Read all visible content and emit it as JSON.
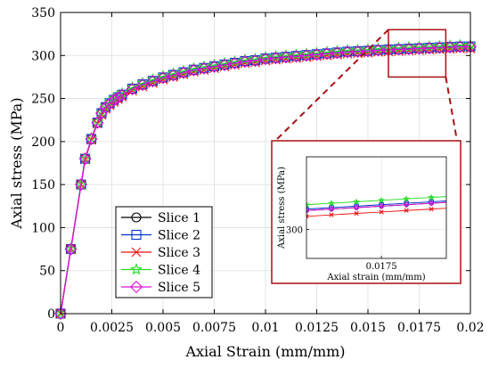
{
  "chart_data": {
    "type": "line",
    "title": "",
    "xlabel": "Axial Strain (mm/mm)",
    "ylabel": "Axial stress (MPa)",
    "xlim": [
      0,
      0.02
    ],
    "ylim": [
      0,
      350
    ],
    "grid": true,
    "legend_position": "bottom-left-center",
    "xticks": [
      0,
      0.0025,
      0.005,
      0.0075,
      0.01,
      0.0125,
      0.015,
      0.0175,
      0.02
    ],
    "xtick_labels": [
      "0",
      "0.0025",
      "0.005",
      "0.0075",
      "0.01",
      "0.0125",
      "0.015",
      "0.0175",
      "0.02"
    ],
    "yticks": [
      0,
      50,
      100,
      150,
      200,
      250,
      300,
      350
    ],
    "ytick_labels": [
      "0",
      "50",
      "100",
      "150",
      "200",
      "250",
      "300",
      "350"
    ],
    "series": [
      {
        "name": "Slice 1",
        "color": "#000000",
        "marker": "circle",
        "x": [
          0,
          0.0005,
          0.001,
          0.0012,
          0.0015,
          0.0018,
          0.002,
          0.0022,
          0.0024,
          0.0026,
          0.0028,
          0.003,
          0.0035,
          0.004,
          0.0045,
          0.005,
          0.0055,
          0.006,
          0.0065,
          0.007,
          0.0075,
          0.008,
          0.0085,
          0.009,
          0.0095,
          0.01,
          0.0105,
          0.011,
          0.0115,
          0.012,
          0.0125,
          0.013,
          0.0135,
          0.014,
          0.0145,
          0.015,
          0.0155,
          0.016,
          0.0165,
          0.017,
          0.0175,
          0.018,
          0.0185,
          0.019,
          0.0195,
          0.02
        ],
        "y": [
          0,
          75,
          150,
          180,
          203,
          222,
          233,
          240,
          244,
          248,
          251,
          254,
          261,
          266,
          270,
          274,
          277,
          280,
          283,
          285,
          287,
          289,
          291,
          293,
          294,
          296,
          297,
          298,
          299,
          300,
          301,
          302,
          303,
          304,
          304.5,
          305,
          306,
          306.5,
          307,
          307.5,
          308,
          308.5,
          309,
          309.5,
          310,
          310
        ]
      },
      {
        "name": "Slice 2",
        "color": "#0033cc",
        "marker": "square",
        "x": [
          0,
          0.0005,
          0.001,
          0.0012,
          0.0015,
          0.0018,
          0.002,
          0.0022,
          0.0024,
          0.0026,
          0.0028,
          0.003,
          0.0035,
          0.004,
          0.0045,
          0.005,
          0.0055,
          0.006,
          0.0065,
          0.007,
          0.0075,
          0.008,
          0.0085,
          0.009,
          0.0095,
          0.01,
          0.0105,
          0.011,
          0.0115,
          0.012,
          0.0125,
          0.013,
          0.0135,
          0.014,
          0.0145,
          0.015,
          0.0155,
          0.016,
          0.0165,
          0.017,
          0.0175,
          0.018,
          0.0185,
          0.019,
          0.0195,
          0.02
        ],
        "y": [
          0,
          75,
          150,
          180,
          203,
          222,
          233,
          240,
          244.5,
          248.5,
          251.5,
          254.5,
          261.5,
          266.5,
          270.5,
          274.5,
          277.5,
          280.5,
          283.5,
          285.5,
          287.5,
          289.5,
          291.5,
          293.5,
          294.5,
          296.5,
          297.5,
          298.5,
          299.5,
          300.5,
          301.5,
          302.5,
          303.5,
          304.5,
          305,
          305.5,
          306.5,
          307,
          307.5,
          308,
          308.5,
          309,
          309.5,
          310,
          310.5,
          310.5
        ]
      },
      {
        "name": "Slice 3",
        "color": "#ee1111",
        "marker": "x",
        "x": [
          0,
          0.0005,
          0.001,
          0.0012,
          0.0015,
          0.0018,
          0.002,
          0.0022,
          0.0024,
          0.0026,
          0.0028,
          0.003,
          0.0035,
          0.004,
          0.0045,
          0.005,
          0.0055,
          0.006,
          0.0065,
          0.007,
          0.0075,
          0.008,
          0.0085,
          0.009,
          0.0095,
          0.01,
          0.0105,
          0.011,
          0.0115,
          0.012,
          0.0125,
          0.013,
          0.0135,
          0.014,
          0.0145,
          0.015,
          0.0155,
          0.016,
          0.0165,
          0.017,
          0.0175,
          0.018,
          0.0185,
          0.019,
          0.0195,
          0.02
        ],
        "y": [
          0,
          75,
          150,
          179,
          202,
          221,
          231,
          238,
          242,
          246,
          249,
          252,
          259,
          264,
          268,
          272,
          275,
          278,
          281,
          283,
          285,
          287,
          289,
          291,
          292,
          294,
          295,
          296,
          297,
          298,
          299,
          300,
          301,
          302,
          302.5,
          303,
          304,
          304.5,
          305,
          305.5,
          306,
          306.5,
          307,
          307.5,
          308,
          308
        ]
      },
      {
        "name": "Slice 4",
        "color": "#22dd22",
        "marker": "star",
        "x": [
          0,
          0.0005,
          0.001,
          0.0012,
          0.0015,
          0.0018,
          0.002,
          0.0022,
          0.0024,
          0.0026,
          0.0028,
          0.003,
          0.0035,
          0.004,
          0.0045,
          0.005,
          0.0055,
          0.006,
          0.0065,
          0.007,
          0.0075,
          0.008,
          0.0085,
          0.009,
          0.0095,
          0.01,
          0.0105,
          0.011,
          0.0115,
          0.012,
          0.0125,
          0.013,
          0.0135,
          0.014,
          0.0145,
          0.015,
          0.0155,
          0.016,
          0.0165,
          0.017,
          0.0175,
          0.018,
          0.0185,
          0.019,
          0.0195,
          0.02
        ],
        "y": [
          0,
          75,
          150,
          180,
          204,
          223,
          234,
          241,
          246,
          250,
          253,
          256,
          263,
          268,
          272,
          276,
          279,
          282,
          285,
          287,
          289,
          291,
          293,
          295,
          296,
          298,
          299,
          300,
          301,
          302,
          303,
          304,
          305,
          306,
          306.5,
          307,
          308,
          308.5,
          309,
          309.5,
          310,
          310.5,
          311,
          311.5,
          312,
          312
        ]
      },
      {
        "name": "Slice 5",
        "color": "#dd11dd",
        "marker": "diamond",
        "x": [
          0,
          0.0005,
          0.001,
          0.0012,
          0.0015,
          0.0018,
          0.002,
          0.0022,
          0.0024,
          0.0026,
          0.0028,
          0.003,
          0.0035,
          0.004,
          0.0045,
          0.005,
          0.0055,
          0.006,
          0.0065,
          0.007,
          0.0075,
          0.008,
          0.0085,
          0.009,
          0.0095,
          0.01,
          0.0105,
          0.011,
          0.0115,
          0.012,
          0.0125,
          0.013,
          0.0135,
          0.014,
          0.0145,
          0.015,
          0.0155,
          0.016,
          0.0165,
          0.017,
          0.0175,
          0.018,
          0.0185,
          0.019,
          0.0195,
          0.02
        ],
        "y": [
          0,
          75,
          150,
          180,
          203,
          222,
          233,
          240,
          244,
          248,
          251,
          254,
          261,
          266,
          270,
          274,
          277,
          280,
          283,
          285,
          287,
          289,
          291,
          293,
          294,
          296,
          297,
          298,
          299,
          300,
          301,
          302,
          303,
          304,
          304.5,
          305,
          306,
          306.5,
          307,
          307.5,
          308,
          308.5,
          309,
          309.5,
          310,
          310
        ]
      }
    ],
    "zoom_region": {
      "xlim": [
        0.016,
        0.0188
      ],
      "ylim": [
        275,
        330
      ]
    },
    "inset": {
      "xlabel": "Axial strain (mm/mm)",
      "ylabel": "Axial stress (MPa)",
      "xlim": [
        0.016,
        0.0188
      ],
      "ylim": [
        290,
        325
      ],
      "xticks": [
        0.0175
      ],
      "xtick_labels": [
        "0.0175"
      ],
      "yticks": [
        300
      ],
      "ytick_labels": [
        "300"
      ]
    }
  }
}
